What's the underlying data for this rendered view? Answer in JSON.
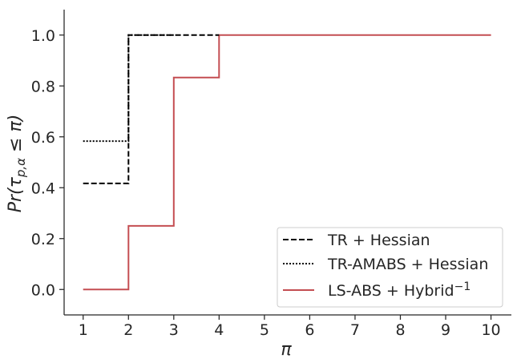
{
  "chart_data": {
    "type": "line",
    "step": "post",
    "xlabel": "π",
    "ylabel_prefix": "Pr(τ",
    "ylabel_sub": "p,α",
    "ylabel_suffix": " ≤ π)",
    "xlim": [
      0.58,
      10.45
    ],
    "ylim": [
      -0.1,
      1.1
    ],
    "x_ticks": [
      1,
      2,
      3,
      4,
      5,
      6,
      7,
      8,
      9,
      10
    ],
    "x_tick_labels": [
      "1",
      "2",
      "3",
      "4",
      "5",
      "6",
      "7",
      "8",
      "9",
      "10"
    ],
    "y_ticks": [
      0.0,
      0.2,
      0.4,
      0.6,
      0.8,
      1.0
    ],
    "y_tick_labels": [
      "0.0",
      "0.2",
      "0.4",
      "0.6",
      "0.8",
      "1.0"
    ],
    "grid": false,
    "legend_position": "lower-right",
    "series": [
      {
        "name": "TR + Hessian",
        "color": "#000000",
        "dash": "dashed",
        "x": [
          1,
          2,
          2,
          3,
          4
        ],
        "y": [
          0.417,
          0.417,
          1.0,
          1.0,
          1.0
        ]
      },
      {
        "name": "TR-AMABS + Hessian",
        "color": "#000000",
        "dash": "dotted",
        "x": [
          1,
          2,
          2,
          3
        ],
        "y": [
          0.583,
          0.583,
          1.0,
          1.0
        ]
      },
      {
        "name": "LS-ABS + Hybrid",
        "name_superscript": "−1",
        "color": "#c44e52",
        "dash": "solid",
        "x": [
          1,
          2,
          2,
          3,
          3,
          4,
          4,
          10
        ],
        "y": [
          0.0,
          0.0,
          0.25,
          0.25,
          0.833,
          0.833,
          1.0,
          1.0
        ]
      }
    ]
  }
}
